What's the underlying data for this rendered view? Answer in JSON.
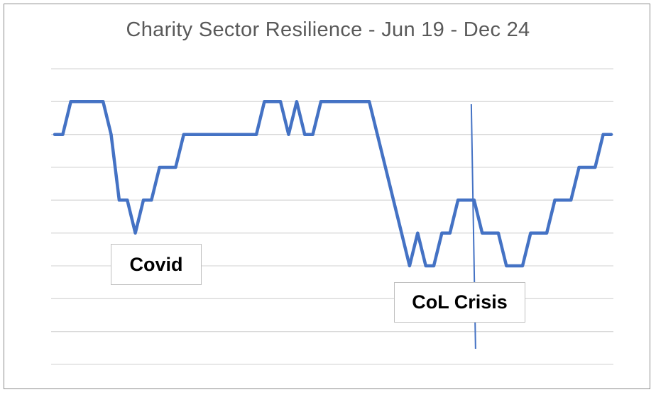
{
  "chart_data": {
    "type": "line",
    "title": "Charity Sector Resilience - Jun 19 -  Dec 24",
    "xlabel": "",
    "ylabel": "",
    "ylim": [
      0,
      9
    ],
    "grid": true,
    "legend": "none",
    "series": [
      {
        "name": "Resilience",
        "color": "#4472c4",
        "values": [
          7,
          7,
          8,
          8,
          8,
          8,
          8,
          7,
          5,
          5,
          4,
          5,
          5,
          6,
          6,
          6,
          7,
          7,
          7,
          7,
          7,
          7,
          7,
          7,
          7,
          7,
          8,
          8,
          8,
          7,
          8,
          7,
          7,
          8,
          8,
          8,
          8,
          8,
          8,
          8,
          7,
          6,
          5,
          4,
          3,
          4,
          3,
          3,
          4,
          4,
          5,
          5,
          5,
          4,
          4,
          4,
          3,
          3,
          3,
          4,
          4,
          4,
          5,
          5,
          5,
          6,
          6,
          6,
          7,
          7
        ]
      }
    ],
    "annotations": [
      {
        "label": "Covid",
        "point_index": 10
      },
      {
        "label": "CoL Crisis",
        "point_index": 52
      }
    ],
    "vline_index": 52
  }
}
